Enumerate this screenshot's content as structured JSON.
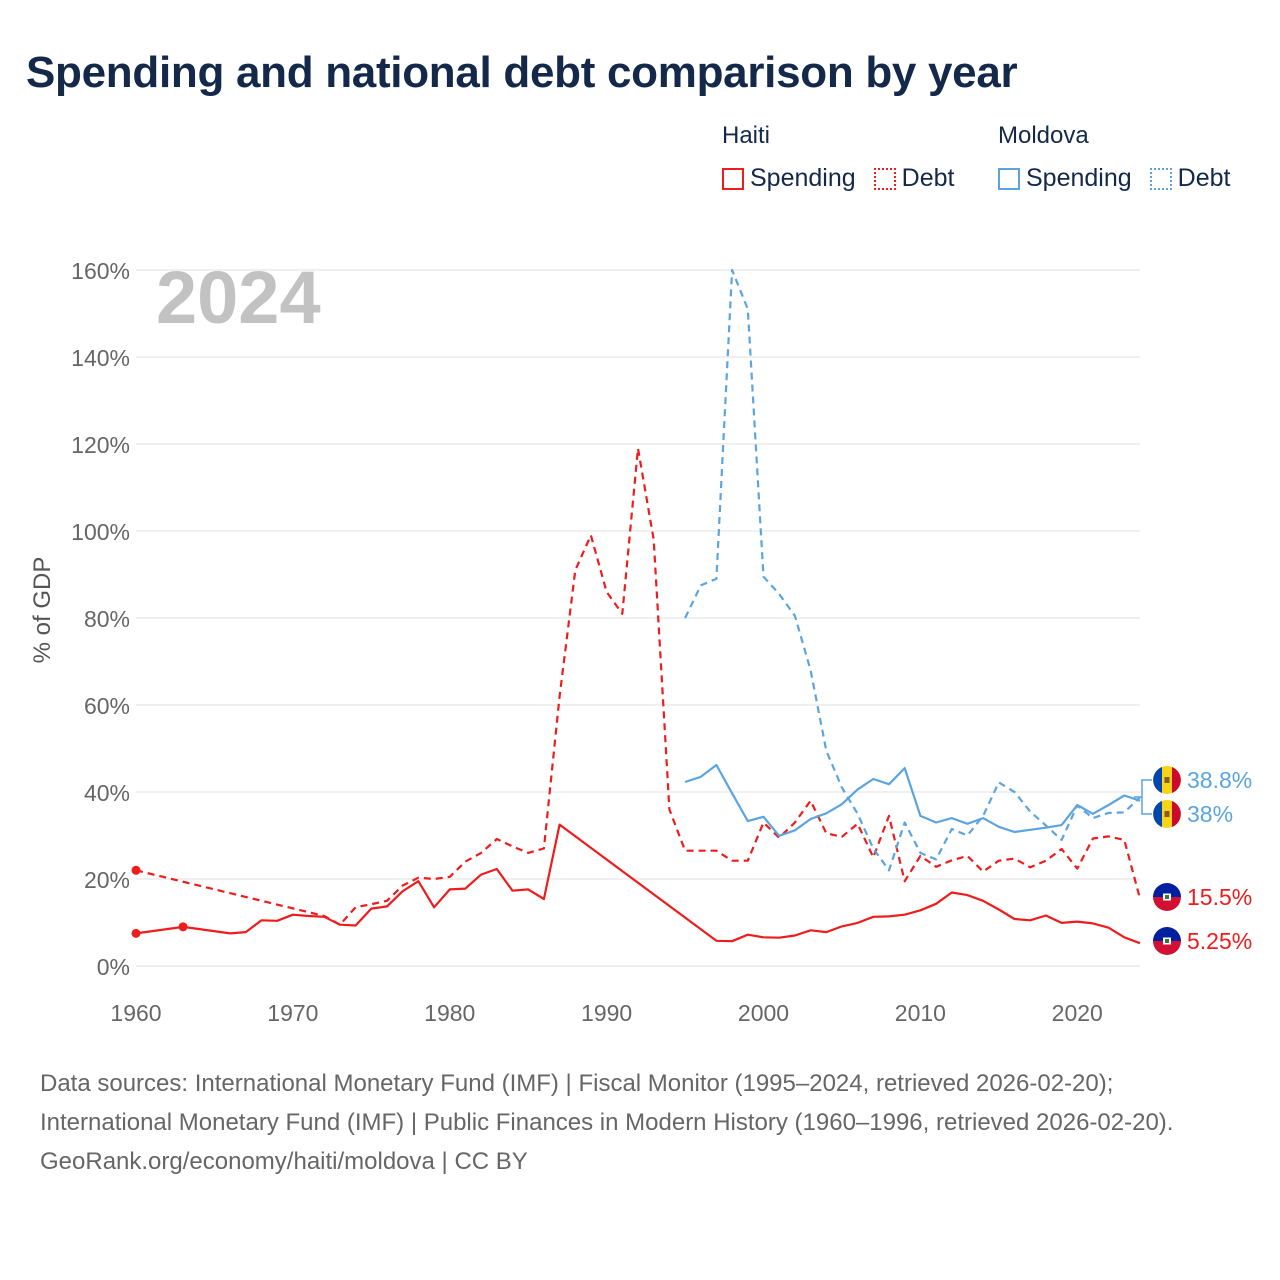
{
  "title": "Spending and national debt comparison by year",
  "legend": {
    "haiti": {
      "name": "Haiti",
      "spending_label": "Spending",
      "debt_label": "Debt",
      "color": "#ee1c1c"
    },
    "moldova": {
      "name": "Moldova",
      "spending_label": "Spending",
      "debt_label": "Debt",
      "color": "#5ba4e0"
    }
  },
  "footer": {
    "sources": "Data sources: International Monetary Fund (IMF) | Fiscal Monitor (1995–2024, retrieved 2026-02-20); International Monetary Fund (IMF) | Public Finances in Modern History (1960–1996, retrieved 2026-02-20).",
    "credit": "GeoRank.org/economy/haiti/moldova | CC BY"
  },
  "chart_data": {
    "type": "line",
    "year_label": "2024",
    "ylabel": "% of GDP",
    "xlabel": "",
    "xlim": [
      1960,
      2024
    ],
    "ylim": [
      0,
      160
    ],
    "x_ticks": [
      1960,
      1970,
      1980,
      1990,
      2000,
      2010,
      2020
    ],
    "y_ticks": [
      0,
      20,
      40,
      60,
      80,
      100,
      120,
      140,
      160
    ],
    "y_tick_labels": [
      "0%",
      "20%",
      "40%",
      "60%",
      "80%",
      "100%",
      "120%",
      "140%",
      "160%"
    ],
    "gridlines": true,
    "series": [
      {
        "name": "Haiti Spending",
        "country": "Haiti",
        "metric": "Spending",
        "color": "#ee1c1c",
        "dashed": false,
        "end_label": "5.25%",
        "points": [
          [
            1960,
            7.5
          ],
          [
            1963,
            9
          ],
          [
            1964,
            8.5
          ],
          [
            1966,
            7.5
          ],
          [
            1967,
            7.8
          ],
          [
            1968,
            10.5
          ],
          [
            1969,
            10.4
          ],
          [
            1970,
            11.8
          ],
          [
            1971,
            11.5
          ],
          [
            1972,
            11.3
          ],
          [
            1973,
            9.5
          ],
          [
            1974,
            9.3
          ],
          [
            1975,
            13.2
          ],
          [
            1976,
            13.7
          ],
          [
            1977,
            17.2
          ],
          [
            1978,
            19.5
          ],
          [
            1979,
            13.5
          ],
          [
            1980,
            17.6
          ],
          [
            1981,
            17.8
          ],
          [
            1982,
            21
          ],
          [
            1983,
            22.3
          ],
          [
            1984,
            17.3
          ],
          [
            1985,
            17.6
          ],
          [
            1986,
            15.4
          ],
          [
            1987,
            32.5
          ],
          [
            1997,
            5.8
          ],
          [
            1998,
            5.7
          ],
          [
            1999,
            7.2
          ],
          [
            2000,
            6.6
          ],
          [
            2001,
            6.5
          ],
          [
            2002,
            7
          ],
          [
            2003,
            8.2
          ],
          [
            2004,
            7.8
          ],
          [
            2005,
            9.1
          ],
          [
            2006,
            9.9
          ],
          [
            2007,
            11.3
          ],
          [
            2008,
            11.4
          ],
          [
            2009,
            11.8
          ],
          [
            2010,
            12.8
          ],
          [
            2011,
            14.3
          ],
          [
            2012,
            16.9
          ],
          [
            2013,
            16.3
          ],
          [
            2014,
            15
          ],
          [
            2015,
            13
          ],
          [
            2016,
            10.8
          ],
          [
            2017,
            10.5
          ],
          [
            2018,
            11.6
          ],
          [
            2019,
            9.9
          ],
          [
            2020,
            10.2
          ],
          [
            2021,
            9.8
          ],
          [
            2022,
            8.8
          ],
          [
            2023,
            6.6
          ],
          [
            2024,
            5.25
          ]
        ],
        "isolated": [
          [
            1960,
            7.5
          ],
          [
            1963,
            9
          ]
        ]
      },
      {
        "name": "Haiti Debt",
        "country": "Haiti",
        "metric": "Debt",
        "color": "#ee1c1c",
        "dashed": true,
        "end_label": "15.5%",
        "points": [
          [
            1960,
            22
          ],
          [
            1972,
            11.5
          ],
          [
            1973,
            9.5
          ],
          [
            1974,
            13.5
          ],
          [
            1975,
            14.2
          ],
          [
            1976,
            15
          ],
          [
            1977,
            18.5
          ],
          [
            1978,
            20.3
          ],
          [
            1979,
            20
          ],
          [
            1980,
            20.5
          ],
          [
            1981,
            24
          ],
          [
            1982,
            26
          ],
          [
            1983,
            29.2
          ],
          [
            1984,
            27.5
          ],
          [
            1985,
            26
          ],
          [
            1986,
            27
          ],
          [
            1987,
            62
          ],
          [
            1988,
            91
          ],
          [
            1989,
            99
          ],
          [
            1990,
            86
          ],
          [
            1991,
            81
          ],
          [
            1992,
            119
          ],
          [
            1993,
            98
          ],
          [
            1994,
            36
          ],
          [
            1995,
            26.5
          ],
          [
            1996,
            26.5
          ],
          [
            1997,
            26.5
          ],
          [
            1998,
            24.2
          ],
          [
            1999,
            24.2
          ],
          [
            2000,
            33
          ],
          [
            2001,
            29.5
          ],
          [
            2002,
            33
          ],
          [
            2003,
            38
          ],
          [
            2004,
            30.5
          ],
          [
            2005,
            29.7
          ],
          [
            2006,
            32.7
          ],
          [
            2007,
            25
          ],
          [
            2008,
            34.5
          ],
          [
            2009,
            19.5
          ],
          [
            2010,
            25.3
          ],
          [
            2011,
            22.8
          ],
          [
            2012,
            24.3
          ],
          [
            2013,
            25.3
          ],
          [
            2014,
            21.7
          ],
          [
            2015,
            24.2
          ],
          [
            2016,
            24.7
          ],
          [
            2017,
            22.7
          ],
          [
            2018,
            24.2
          ],
          [
            2019,
            26.9
          ],
          [
            2020,
            22.4
          ],
          [
            2021,
            29.3
          ],
          [
            2022,
            29.8
          ],
          [
            2023,
            29
          ],
          [
            2024,
            15.5
          ]
        ],
        "isolated": [
          [
            1960,
            22
          ]
        ]
      },
      {
        "name": "Moldova Spending",
        "country": "Moldova",
        "metric": "Spending",
        "color": "#5ba4e0",
        "dashed": false,
        "end_label": "38%",
        "points": [
          [
            1995,
            42.3
          ],
          [
            1996,
            43.5
          ],
          [
            1997,
            46.2
          ],
          [
            1998,
            39.7
          ],
          [
            1999,
            33.3
          ],
          [
            2000,
            34.3
          ],
          [
            2001,
            29.9
          ],
          [
            2002,
            31.2
          ],
          [
            2003,
            33.8
          ],
          [
            2004,
            35.1
          ],
          [
            2005,
            37.2
          ],
          [
            2006,
            40.6
          ],
          [
            2007,
            43
          ],
          [
            2008,
            41.8
          ],
          [
            2009,
            45.5
          ],
          [
            2010,
            34.5
          ],
          [
            2011,
            33
          ],
          [
            2012,
            34
          ],
          [
            2013,
            32.7
          ],
          [
            2014,
            34
          ],
          [
            2015,
            32
          ],
          [
            2016,
            30.8
          ],
          [
            2017,
            31.3
          ],
          [
            2018,
            31.8
          ],
          [
            2019,
            32.4
          ],
          [
            2020,
            37
          ],
          [
            2021,
            35
          ],
          [
            2022,
            37
          ],
          [
            2023,
            39.2
          ],
          [
            2024,
            38
          ]
        ],
        "isolated": []
      },
      {
        "name": "Moldova Debt",
        "country": "Moldova",
        "metric": "Debt",
        "color": "#5ba4e0",
        "dashed": true,
        "end_label": "38.8%",
        "points": [
          [
            1995,
            80
          ],
          [
            1996,
            87.5
          ],
          [
            1997,
            89
          ],
          [
            1998,
            160
          ],
          [
            1999,
            151
          ],
          [
            2000,
            89.5
          ],
          [
            2001,
            85.5
          ],
          [
            2002,
            80.5
          ],
          [
            2003,
            68
          ],
          [
            2004,
            49.5
          ],
          [
            2005,
            41
          ],
          [
            2006,
            35
          ],
          [
            2007,
            27
          ],
          [
            2008,
            22
          ],
          [
            2009,
            33
          ],
          [
            2010,
            26
          ],
          [
            2011,
            24.5
          ],
          [
            2012,
            31.5
          ],
          [
            2013,
            30
          ],
          [
            2014,
            34.5
          ],
          [
            2015,
            42.2
          ],
          [
            2016,
            40
          ],
          [
            2017,
            35.5
          ],
          [
            2018,
            32.3
          ],
          [
            2019,
            29
          ],
          [
            2020,
            36.9
          ],
          [
            2021,
            34
          ],
          [
            2022,
            35.2
          ],
          [
            2023,
            35.3
          ],
          [
            2024,
            38.8
          ]
        ],
        "isolated": []
      }
    ]
  }
}
